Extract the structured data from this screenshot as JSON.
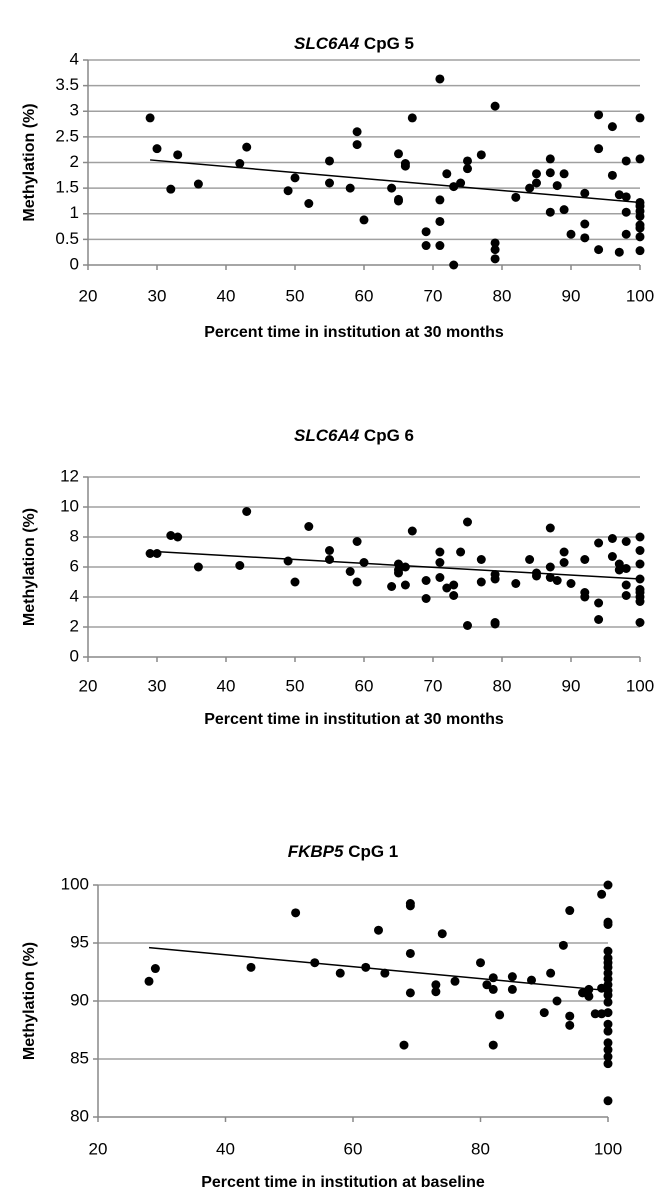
{
  "chart_data": [
    {
      "type": "scatter",
      "title_gene": "SLC6A4",
      "title_rest": "CpG 5",
      "x_label": "Percent time in institution at 30 months",
      "y_label": "Methylation (%)",
      "color": "#000000",
      "grid": true,
      "xlim": [
        20,
        100
      ],
      "xticks": [
        20,
        30,
        40,
        50,
        60,
        70,
        80,
        90,
        100
      ],
      "ylim": [
        0,
        4
      ],
      "yticks": [
        0,
        0.5,
        1,
        1.5,
        2,
        2.5,
        3,
        3.5,
        4
      ],
      "x": [
        29,
        30,
        32,
        33,
        36,
        42,
        43,
        49,
        50,
        52,
        55,
        55,
        58,
        59,
        59,
        60,
        64,
        65,
        65,
        65,
        66,
        66,
        67,
        69,
        69,
        71,
        71,
        71,
        71,
        72,
        73,
        73,
        74,
        75,
        75,
        77,
        79,
        79,
        79,
        79,
        82,
        84,
        85,
        85,
        87,
        87,
        87,
        88,
        89,
        89,
        90,
        92,
        92,
        92,
        94,
        94,
        94,
        96,
        96,
        97,
        97,
        98,
        98,
        98,
        98,
        100,
        100,
        100,
        100,
        100,
        100,
        100,
        100,
        100,
        100
      ],
      "y": [
        2.87,
        2.27,
        1.48,
        2.15,
        1.58,
        1.98,
        2.3,
        1.45,
        1.7,
        1.2,
        2.03,
        1.6,
        1.5,
        2.6,
        2.35,
        0.88,
        1.5,
        2.17,
        1.28,
        1.25,
        1.98,
        1.93,
        2.87,
        0.65,
        0.38,
        3.63,
        1.27,
        0.85,
        0.38,
        1.78,
        0,
        1.53,
        1.6,
        2.03,
        1.88,
        2.15,
        3.1,
        0.43,
        0.3,
        0.12,
        1.32,
        1.5,
        1.78,
        1.6,
        2.07,
        1.8,
        1.03,
        1.55,
        1.78,
        1.08,
        0.6,
        1.4,
        0.8,
        0.53,
        2.93,
        2.27,
        0.3,
        2.7,
        1.75,
        1.37,
        0.25,
        2.03,
        1.33,
        1.03,
        0.6,
        2.87,
        2.07,
        1.22,
        1.15,
        1.05,
        0.95,
        0.78,
        0.72,
        0.55,
        0.28
      ],
      "trendline": {
        "x": [
          29,
          100
        ],
        "y": [
          2.05,
          1.22
        ]
      }
    },
    {
      "type": "scatter",
      "title_gene": "SLC6A4",
      "title_rest": "CpG 6",
      "x_label": "Percent time in institution at 30 months",
      "y_label": "Methylation (%)",
      "color": "#000000",
      "grid": true,
      "xlim": [
        20,
        100
      ],
      "xticks": [
        20,
        30,
        40,
        50,
        60,
        70,
        80,
        90,
        100
      ],
      "ylim": [
        0,
        12
      ],
      "yticks": [
        0,
        2,
        4,
        6,
        8,
        10,
        12
      ],
      "x": [
        29,
        30,
        32,
        33,
        36,
        42,
        43,
        49,
        50,
        52,
        55,
        55,
        58,
        59,
        59,
        60,
        64,
        65,
        65,
        65,
        66,
        66,
        67,
        69,
        69,
        71,
        71,
        71,
        72,
        73,
        73,
        74,
        75,
        75,
        77,
        77,
        79,
        79,
        79,
        79,
        82,
        84,
        85,
        85,
        87,
        87,
        87,
        88,
        89,
        89,
        90,
        92,
        92,
        92,
        94,
        94,
        94,
        96,
        96,
        97,
        97,
        98,
        98,
        98,
        98,
        100,
        100,
        100,
        100,
        100,
        100,
        100,
        100,
        100
      ],
      "y": [
        6.9,
        6.9,
        8.1,
        8.0,
        6.0,
        6.1,
        9.7,
        6.4,
        5.0,
        8.7,
        7.1,
        6.5,
        5.7,
        7.7,
        5.0,
        6.3,
        4.7,
        6.2,
        5.8,
        5.6,
        6.0,
        4.8,
        8.4,
        5.1,
        3.9,
        7.0,
        6.3,
        5.3,
        4.6,
        4.1,
        4.8,
        7.0,
        9.0,
        2.1,
        6.5,
        5.0,
        5.5,
        5.2,
        2.3,
        2.2,
        4.9,
        6.5,
        5.6,
        5.4,
        8.6,
        6.0,
        5.3,
        5.1,
        7.0,
        6.3,
        4.9,
        6.5,
        4.3,
        4.0,
        7.6,
        3.6,
        2.5,
        7.9,
        6.7,
        6.2,
        5.8,
        7.7,
        5.9,
        4.8,
        4.1,
        8.0,
        7.1,
        6.2,
        5.2,
        4.5,
        4.3,
        4.0,
        3.7,
        2.3
      ],
      "trendline": {
        "x": [
          29,
          100
        ],
        "y": [
          7.05,
          5.2
        ]
      }
    },
    {
      "type": "scatter",
      "title_gene": "FKBP5",
      "title_rest": "CpG 1",
      "x_label": "Percent time in institution at baseline",
      "y_label": "Methylation (%)",
      "color": "#000000",
      "grid": true,
      "xlim": [
        20,
        100
      ],
      "xticks": [
        20,
        40,
        60,
        80,
        100
      ],
      "ylim": [
        80,
        100
      ],
      "yticks": [
        80,
        85,
        90,
        95,
        100
      ],
      "x": [
        28,
        29,
        44,
        51,
        54,
        58,
        62,
        64,
        65,
        68,
        69,
        69,
        69,
        69,
        73,
        73,
        74,
        76,
        80,
        81,
        82,
        82,
        82,
        83,
        85,
        85,
        88,
        90,
        91,
        92,
        93,
        94,
        94,
        94,
        96,
        97,
        97,
        98,
        99,
        99,
        99,
        100,
        100,
        100,
        100,
        100,
        100,
        100,
        100,
        100,
        100,
        100,
        100,
        100,
        100,
        100,
        100,
        100,
        100,
        100,
        100,
        100
      ],
      "y": [
        91.7,
        92.8,
        92.9,
        97.6,
        93.3,
        92.4,
        92.9,
        96.1,
        92.4,
        86.2,
        98.4,
        98.2,
        94.1,
        90.7,
        91.4,
        90.8,
        95.8,
        91.7,
        93.3,
        91.4,
        92.0,
        91.0,
        86.2,
        88.8,
        92.1,
        91.0,
        91.8,
        89.0,
        92.4,
        90.0,
        94.8,
        97.8,
        88.7,
        87.9,
        90.7,
        90.4,
        91.0,
        88.9,
        99.2,
        91.1,
        88.9,
        100,
        96.8,
        96.6,
        94.3,
        93.7,
        93.3,
        92.9,
        92.4,
        91.9,
        91.4,
        90.9,
        90.5,
        89.9,
        89.0,
        88.0,
        87.4,
        86.4,
        85.8,
        85.2,
        84.6,
        81.4
      ],
      "trendline": {
        "x": [
          28,
          100
        ],
        "y": [
          94.6,
          90.9
        ]
      }
    }
  ]
}
